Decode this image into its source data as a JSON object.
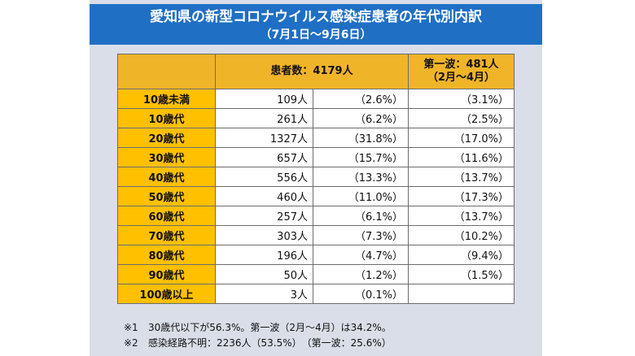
{
  "title": {
    "main": "愛知県の新型コロナウイルス感染症患者の年代別内訳",
    "sub": "（7月1日～9月6日）"
  },
  "table": {
    "header": {
      "blank": "",
      "patients": "患者数：4179人",
      "wave_line1": "第一波：481人",
      "wave_line2": "（2月～4月）"
    },
    "rows": [
      {
        "age": "10歳未満",
        "count": "109人",
        "pct": "（2.6%）",
        "wave": "（3.1%）"
      },
      {
        "age": "10歳代",
        "count": "261人",
        "pct": "（6.2%）",
        "wave": "（2.5%）"
      },
      {
        "age": "20歳代",
        "count": "1327人",
        "pct": "（31.8%）",
        "wave": "（17.0%）"
      },
      {
        "age": "30歳代",
        "count": "657人",
        "pct": "（15.7%）",
        "wave": "（11.6%）"
      },
      {
        "age": "40歳代",
        "count": "556人",
        "pct": "（13.3%）",
        "wave": "（13.7%）"
      },
      {
        "age": "50歳代",
        "count": "460人",
        "pct": "（11.0%）",
        "wave": "（17.3%）"
      },
      {
        "age": "60歳代",
        "count": "257人",
        "pct": "（6.1%）",
        "wave": "（13.7%）"
      },
      {
        "age": "70歳代",
        "count": "303人",
        "pct": "（7.3%）",
        "wave": "（10.2%）"
      },
      {
        "age": "80歳代",
        "count": "196人",
        "pct": "（4.7%）",
        "wave": "（9.4%）"
      },
      {
        "age": "90歳代",
        "count": "50人",
        "pct": "（1.2%）",
        "wave": "（1.5%）"
      },
      {
        "age": "100歳以上",
        "count": "3人",
        "pct": "（0.1%）",
        "wave": ""
      }
    ]
  },
  "notes": [
    {
      "mark": "※1",
      "text": "30歳代以下が56.3%。第一波（2月～4月）は34.2%。"
    },
    {
      "mark": "※2",
      "text": "感染経路不明：2236人（53.5%）　（第一波：25.6%）"
    }
  ],
  "colors": {
    "title_bg": "#1f6fc5",
    "header_bg": "#f0b429",
    "age_cell_bg": "#ffc000",
    "panel_bg": "#d9dee8"
  }
}
